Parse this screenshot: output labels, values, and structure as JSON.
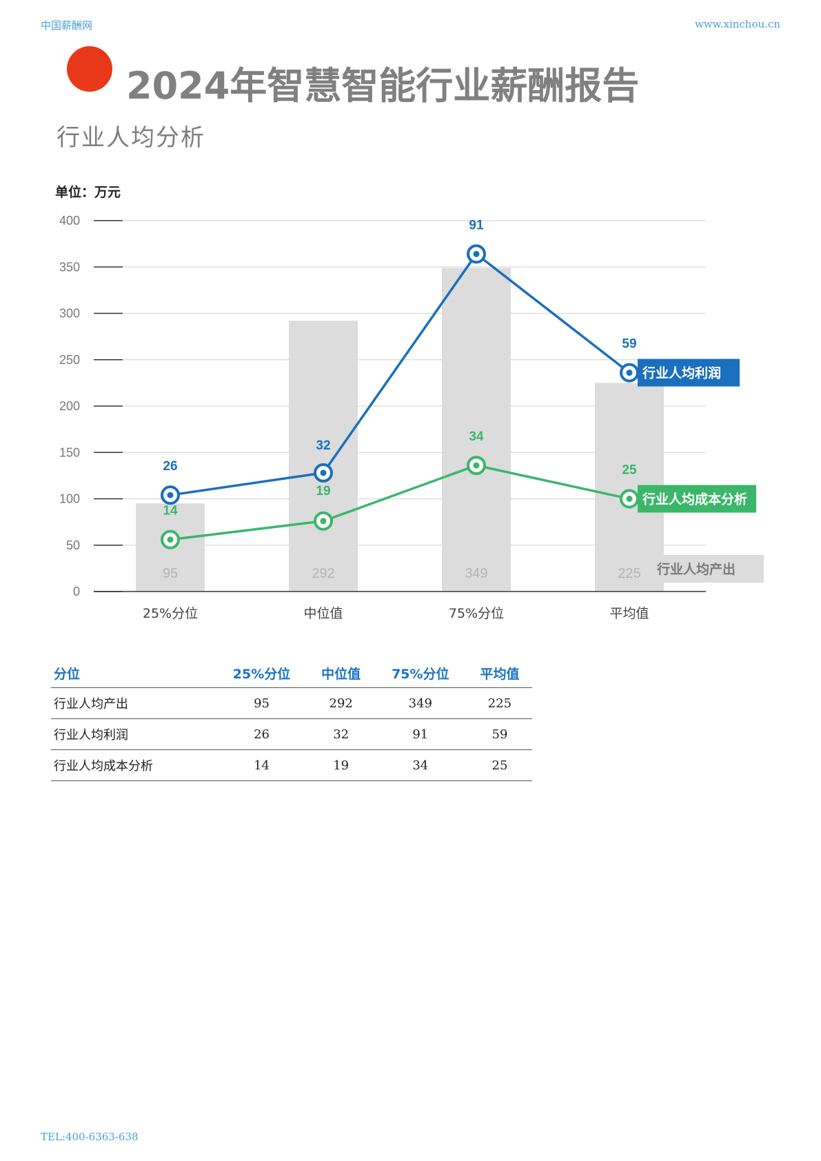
{
  "header": {
    "left": "中国薪酬网",
    "right": "www.xinchou.cn"
  },
  "title": "2024年智慧智能行业薪酬报告",
  "subtitle": "行业人均分析",
  "unit_label": "单位：万元",
  "colors": {
    "bar": "#dcdcdc",
    "profit": "#1a6fbe",
    "cost": "#3cb66a",
    "accent_dot": "#e8381a"
  },
  "chart_data": {
    "type": "bar",
    "categories": [
      "25%分位",
      "中位值",
      "75%分位",
      "平均值"
    ],
    "ylim": [
      0,
      400
    ],
    "yticks": [
      0,
      50,
      100,
      150,
      200,
      250,
      300,
      350,
      400
    ],
    "bar_series": {
      "name": "行业人均产出",
      "values": [
        95,
        292,
        349,
        225
      ]
    },
    "line_series": [
      {
        "name": "行业人均利润",
        "labels": [
          26,
          32,
          91,
          59
        ],
        "plot_values": [
          104,
          128,
          364,
          236
        ]
      },
      {
        "name": "行业人均成本分析",
        "labels": [
          14,
          19,
          34,
          25
        ],
        "plot_values": [
          56,
          76,
          136,
          100
        ]
      }
    ]
  },
  "table": {
    "headers": [
      "分位",
      "25%分位",
      "中位值",
      "75%分位",
      "平均值"
    ],
    "rows": [
      [
        "行业人均产出",
        "95",
        "292",
        "349",
        "225"
      ],
      [
        "行业人均利润",
        "26",
        "32",
        "91",
        "59"
      ],
      [
        "行业人均成本分析",
        "14",
        "19",
        "34",
        "25"
      ]
    ]
  },
  "footer": "TEL:400-6363-638"
}
